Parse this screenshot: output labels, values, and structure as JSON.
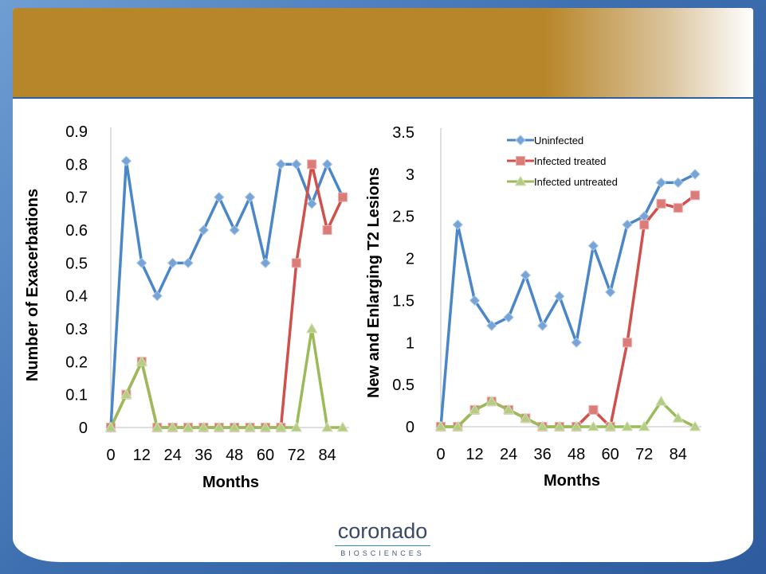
{
  "chart_data": [
    {
      "type": "line",
      "xlabel": "Months",
      "ylabel": "Number of Exacerbations",
      "x_ticks": [
        0,
        12,
        24,
        36,
        48,
        60,
        72,
        84
      ],
      "y_ticks": [
        "0",
        "0.1",
        "0.2",
        "0.3",
        "0.4",
        "0.5",
        "0.6",
        "0.7",
        "0.8",
        "0.9"
      ],
      "ylim": [
        0,
        0.9
      ],
      "xlim": [
        0,
        90
      ],
      "x": [
        0,
        6,
        12,
        18,
        24,
        30,
        36,
        42,
        48,
        54,
        60,
        66,
        72,
        78,
        84,
        90
      ],
      "series": [
        {
          "name": "Uninfected",
          "values": [
            0,
            0.81,
            0.5,
            0.4,
            0.5,
            0.5,
            0.6,
            0.7,
            0.6,
            0.7,
            0.5,
            0.8,
            0.8,
            0.68,
            0.8,
            0.7
          ]
        },
        {
          "name": "Infected treated",
          "values": [
            0,
            0.1,
            0.2,
            0,
            0,
            0,
            0,
            0,
            0,
            0,
            0,
            0,
            0.5,
            0.8,
            0.6,
            0.7
          ]
        },
        {
          "name": "Infected untreated",
          "values": [
            0,
            0.1,
            0.2,
            0,
            0,
            0,
            0,
            0,
            0,
            0,
            0,
            0,
            0,
            0.3,
            0,
            0
          ]
        }
      ],
      "show_legend": false
    },
    {
      "type": "line",
      "xlabel": "Months",
      "ylabel": "New and Enlarging T2 Lesions",
      "x_ticks": [
        0,
        12,
        24,
        36,
        48,
        60,
        72,
        84
      ],
      "y_ticks": [
        "0",
        "0.5",
        "1",
        "1.5",
        "2",
        "2.5",
        "3",
        "3.5"
      ],
      "ylim": [
        0,
        3.5
      ],
      "xlim": [
        0,
        90
      ],
      "x": [
        0,
        6,
        12,
        18,
        24,
        30,
        36,
        42,
        48,
        54,
        60,
        66,
        72,
        78,
        84,
        90
      ],
      "series": [
        {
          "name": "Uninfected",
          "values": [
            0,
            2.4,
            1.5,
            1.2,
            1.3,
            1.8,
            1.2,
            1.55,
            1.0,
            2.15,
            1.6,
            2.4,
            2.5,
            2.9,
            2.9,
            3.0
          ]
        },
        {
          "name": "Infected treated",
          "values": [
            0,
            0,
            0.2,
            0.3,
            0.2,
            0.1,
            0,
            0,
            0,
            0.2,
            0,
            1.0,
            2.4,
            2.65,
            2.6,
            2.75
          ]
        },
        {
          "name": "Infected untreated",
          "values": [
            0,
            0,
            0.2,
            0.3,
            0.2,
            0.1,
            0,
            0,
            0,
            0,
            0,
            0,
            0,
            0.3,
            0.1,
            0
          ]
        }
      ],
      "show_legend": true,
      "legend_position": "top-right"
    }
  ],
  "colors": {
    "Uninfected": "#4a86c8",
    "Infected treated": "#d0504c",
    "Infected untreated": "#9bbb59"
  },
  "logo": {
    "main": "coronado",
    "sub": "BIOSCIENCES"
  }
}
